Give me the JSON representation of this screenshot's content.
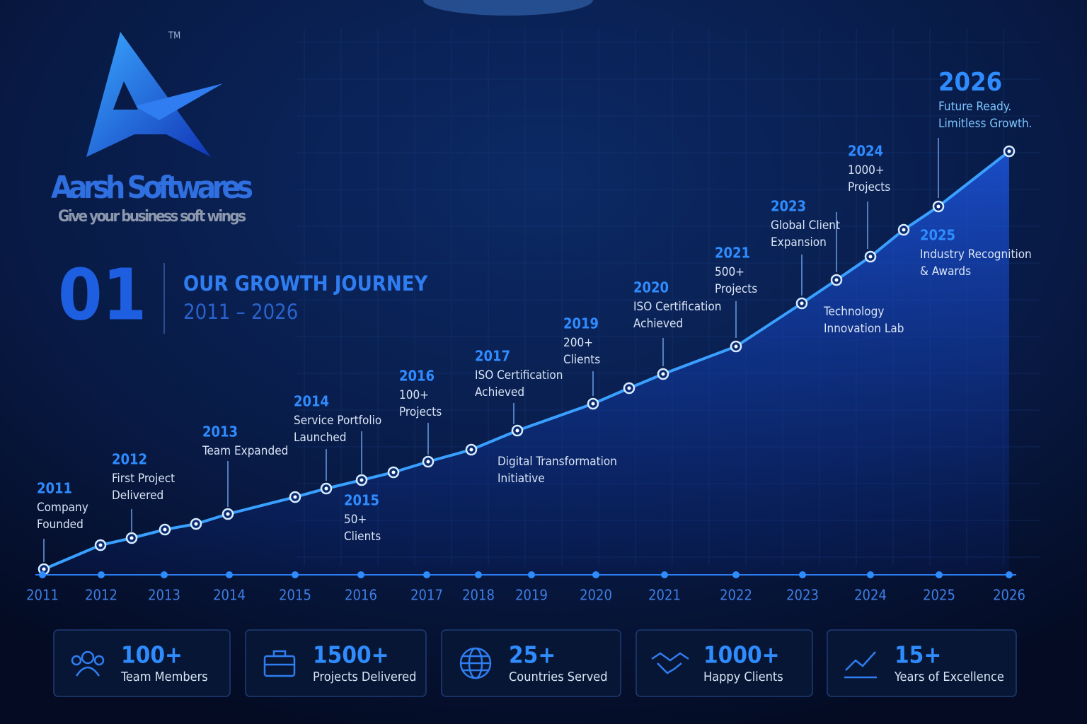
{
  "logo": {
    "tm": "TM",
    "name": "Aarsh Softwares",
    "tagline": "Give your business soft wings"
  },
  "heading": {
    "number": "01",
    "title": "OUR GROWTH JOURNEY",
    "range": "2011 – 2026"
  },
  "milestones": [
    {
      "year": "2011",
      "text": [
        "Company",
        "Founded"
      ]
    },
    {
      "year": "2012",
      "text": [
        "First Project",
        "Delivered"
      ]
    },
    {
      "year": "2013",
      "text": [
        "Team Expanded"
      ]
    },
    {
      "year": "2014",
      "text": [
        "Service Portfolio",
        "Launched"
      ]
    },
    {
      "year": "2015",
      "text": [
        "50+",
        "Clients"
      ]
    },
    {
      "year": "2016",
      "text": [
        "100+",
        "Projects"
      ]
    },
    {
      "year": "2017",
      "text": [
        "ISO Certification",
        "Achieved"
      ]
    },
    {
      "text": [
        "Digital Transformation",
        "Initiative"
      ]
    },
    {
      "year": "2019",
      "text": [
        "200+",
        "Clients"
      ]
    },
    {
      "year": "2020",
      "text": [
        "ISO Certification",
        "Achieved"
      ]
    },
    {
      "year": "2021",
      "text": [
        "500+",
        "Projects"
      ]
    },
    {
      "year": "2023",
      "text": [
        "Global Client",
        "Expansion"
      ]
    },
    {
      "text": [
        "Technology",
        "Innovation Lab"
      ]
    },
    {
      "year": "2024",
      "text": [
        "1000+",
        "Projects"
      ]
    },
    {
      "year": "2025",
      "text": [
        "Industry Recognition",
        "& Awards"
      ]
    },
    {
      "year": "2026",
      "text": [
        "Future Ready.",
        "Limitless Growth."
      ]
    }
  ],
  "axis_years": [
    "2011",
    "2012",
    "2013",
    "2014",
    "2015",
    "2016",
    "2017",
    "2018",
    "2019",
    "2020",
    "2021",
    "2022",
    "2023",
    "2024",
    "2025",
    "2026"
  ],
  "stats": [
    {
      "value": "100+",
      "label": "Team Members"
    },
    {
      "value": "1500+",
      "label": "Projects Delivered"
    },
    {
      "value": "25+",
      "label": "Countries Served"
    },
    {
      "value": "1000+",
      "label": "Happy Clients"
    },
    {
      "value": "15+",
      "label": "Years of Excellence"
    }
  ]
}
